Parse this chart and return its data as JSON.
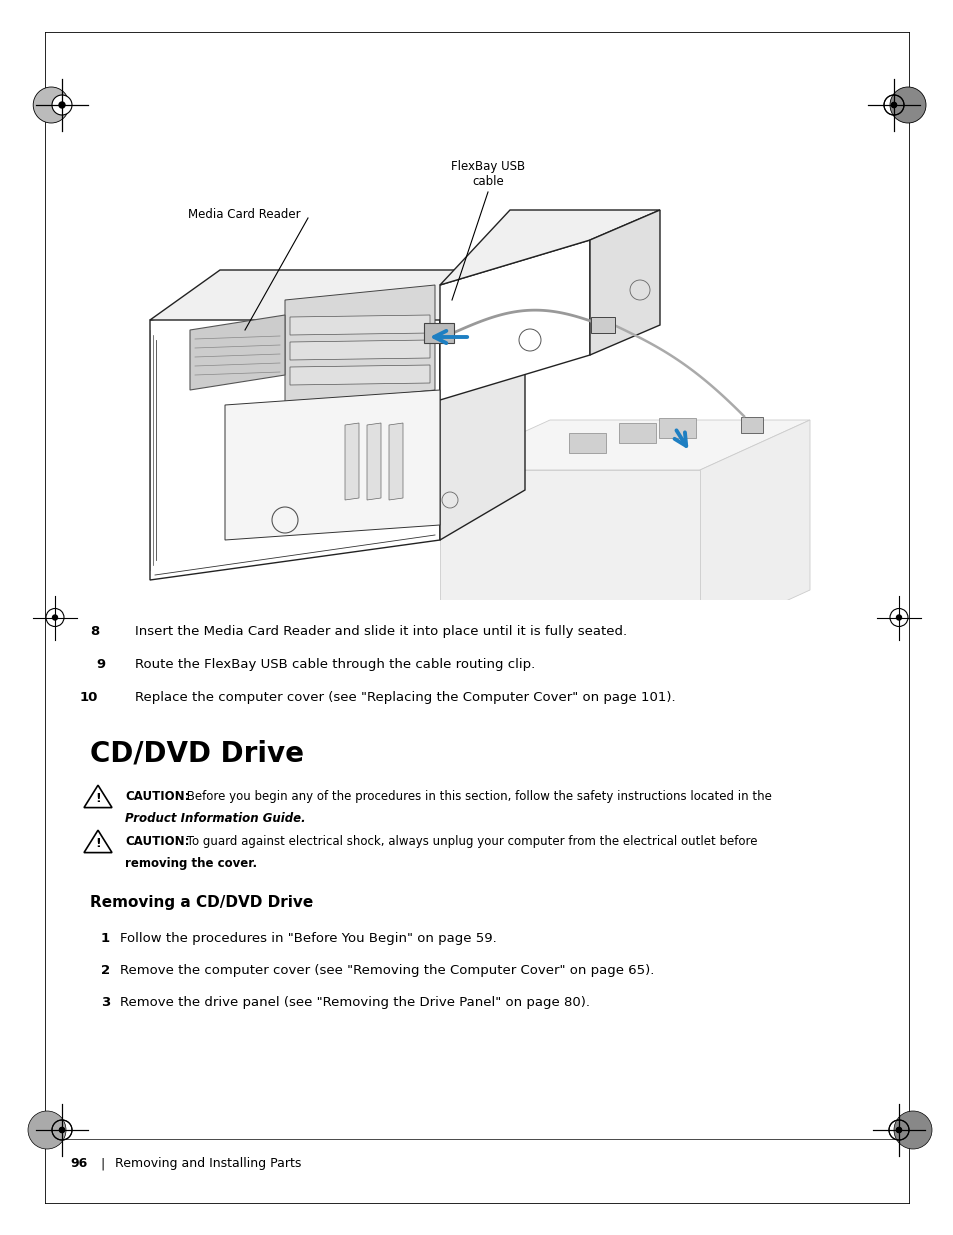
{
  "page_bg": "#ffffff",
  "text_color": "#000000",
  "arrow_color": "#1e7fc2",
  "image_label_flexbay": "FlexBay USB\ncable",
  "image_label_media": "Media Card Reader",
  "step8": "Insert the Media Card Reader and slide it into place until it is fully seated.",
  "step9": "Route the FlexBay USB cable through the cable routing clip.",
  "step10": "Replace the computer cover (see \"Replacing the Computer Cover\" on page 101).",
  "section_title": "CD/DVD Drive",
  "caution1_bold": "CAUTION:",
  "caution1_rest": " Before you begin any of the procedures in this section, follow the safety instructions located in the",
  "caution1_italic": "Product Information Guide.",
  "caution2_bold": "CAUTION:",
  "caution2_rest": " To guard against electrical shock, always unplug your computer from the electrical outlet before",
  "caution2_rest2": "removing the cover.",
  "subsection_title": "Removing a CD/DVD Drive",
  "sub_step1": "Follow the procedures in \"Before You Begin\" on page 59.",
  "sub_step2": "Remove the computer cover (see \"Removing the Computer Cover\" on page 65).",
  "sub_step3": "Remove the drive panel (see \"Removing the Drive Panel\" on page 80).",
  "footer_page": "96",
  "footer_text": "Removing and Installing Parts"
}
